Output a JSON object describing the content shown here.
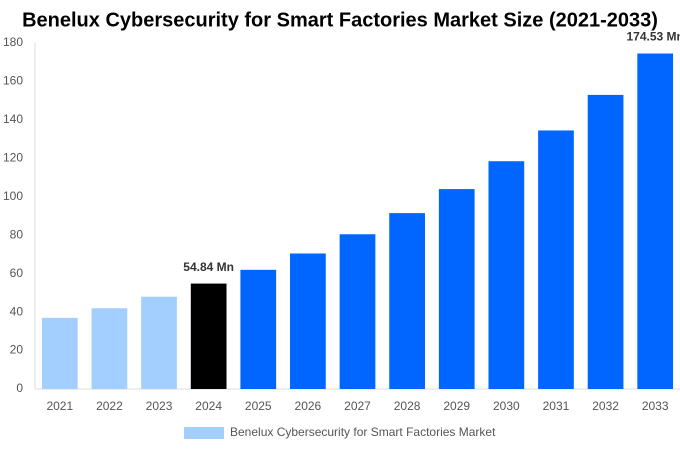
{
  "chart_data": {
    "type": "bar",
    "title": "Benelux Cybersecurity for Smart Factories Market Size (2021-2033)",
    "categories": [
      "2021",
      "2022",
      "2023",
      "2024",
      "2025",
      "2026",
      "2027",
      "2028",
      "2029",
      "2030",
      "2031",
      "2032",
      "2033"
    ],
    "series": [
      {
        "name": "Benelux Cybersecurity for Smart Factories Market",
        "color": "#a3cfff",
        "values": [
          37,
          42,
          48,
          54.84,
          62,
          70.5,
          80.5,
          91.5,
          104,
          118.5,
          134.5,
          153,
          174.53
        ],
        "colors": [
          "#a3cfff",
          "#a3cfff",
          "#a3cfff",
          "#000000",
          "#0066ff",
          "#0066ff",
          "#0066ff",
          "#0066ff",
          "#0066ff",
          "#0066ff",
          "#0066ff",
          "#0066ff",
          "#0066ff"
        ],
        "value_labels": [
          null,
          null,
          null,
          "54.84 Mn",
          null,
          null,
          null,
          null,
          null,
          null,
          null,
          null,
          "174.53 Mn"
        ]
      }
    ],
    "ylim": [
      0,
      180
    ],
    "yticks": [
      0,
      20,
      40,
      60,
      80,
      100,
      120,
      140,
      160,
      180
    ],
    "grid": false,
    "legend": "bottom"
  }
}
